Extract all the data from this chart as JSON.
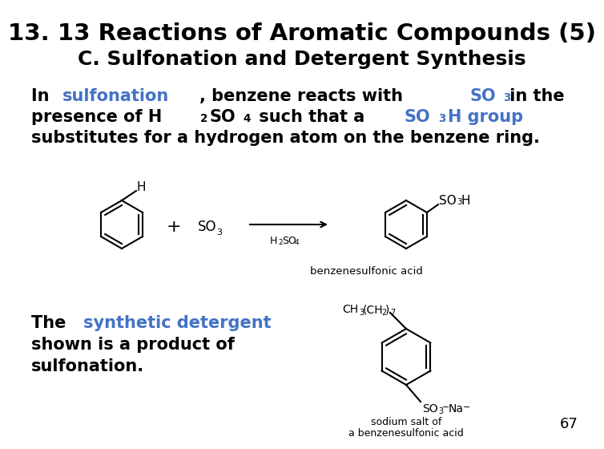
{
  "title_line1": "13. 13 Reactions of Aromatic Compounds (5)",
  "title_line2": "C. Sulfonation and Detergent Synthesis",
  "bg_color": "#ffffff",
  "blue_color": "#4472c4",
  "black_color": "#000000",
  "slide_number": "67",
  "para_line3": "substitutes for a hydrogen atom on the benzene ring.",
  "bottom_line2": "shown is a product of",
  "bottom_line3": "sulfonation.",
  "fontsize_title": 21,
  "fontsize_sub": 18,
  "fontsize_body": 15,
  "fontsize_chem_label": 10,
  "fontsize_chem_sub": 7
}
